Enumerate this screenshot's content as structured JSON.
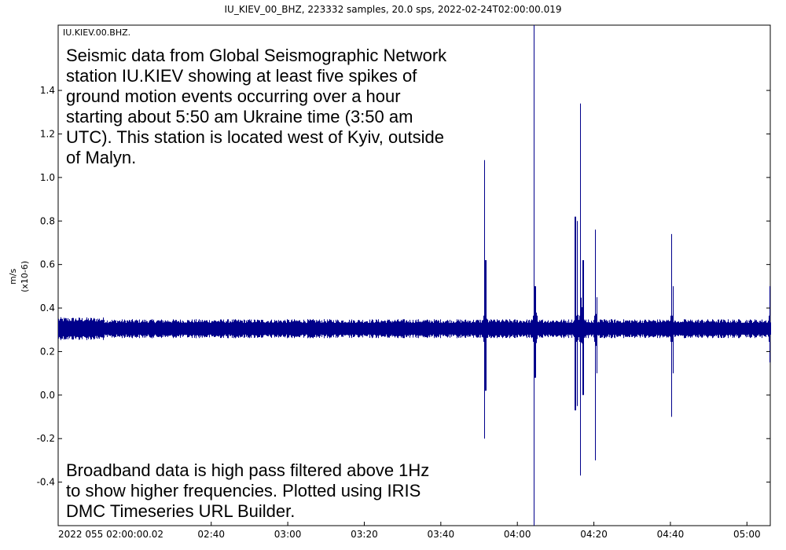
{
  "chart_data": {
    "type": "line",
    "title": "IU_KIEV_00_BHZ, 223332 samples, 20.0 sps, 2022-02-24T02:00:00.019",
    "station_label": "IU.KIEV.00.BHZ.",
    "ylabel": "m/s",
    "ylabel_unit": "(x10-6)",
    "ylim": [
      -0.6,
      1.7
    ],
    "xlim_minutes": [
      0,
      186.1
    ],
    "y_ticks": [
      {
        "value": -0.4,
        "label": "-0.4"
      },
      {
        "value": -0.2,
        "label": "-0.2"
      },
      {
        "value": 0.0,
        "label": "0.0"
      },
      {
        "value": 0.2,
        "label": "0.2"
      },
      {
        "value": 0.4,
        "label": "0.4"
      },
      {
        "value": 0.6,
        "label": "0.6"
      },
      {
        "value": 0.8,
        "label": "0.8"
      },
      {
        "value": 1.0,
        "label": "1.0"
      },
      {
        "value": 1.2,
        "label": "1.2"
      },
      {
        "value": 1.4,
        "label": "1.4"
      }
    ],
    "x_ticks": [
      {
        "minute": 0,
        "label": "2022 055 02:00:00.02"
      },
      {
        "minute": 40,
        "label": "02:40"
      },
      {
        "minute": 60,
        "label": "03:00"
      },
      {
        "minute": 80,
        "label": "03:20"
      },
      {
        "minute": 100,
        "label": "03:40"
      },
      {
        "minute": 120,
        "label": "04:00"
      },
      {
        "minute": 140,
        "label": "04:20"
      },
      {
        "minute": 160,
        "label": "04:40"
      },
      {
        "minute": 180,
        "label": "05:00"
      }
    ],
    "baseline": 0.305,
    "noise_amplitude": 0.035,
    "series_color": "#00008B",
    "spikes": [
      {
        "minute": 111.3,
        "max": 1.08,
        "min": -0.2
      },
      {
        "minute": 111.6,
        "max": 0.62,
        "min": 0.02
      },
      {
        "minute": 124.3,
        "max": 1.7,
        "min": -0.6
      },
      {
        "minute": 124.6,
        "max": 0.5,
        "min": 0.08
      },
      {
        "minute": 135.1,
        "max": 0.82,
        "min": -0.07
      },
      {
        "minute": 135.6,
        "max": 0.8,
        "min": -0.05
      },
      {
        "minute": 136.4,
        "max": 1.34,
        "min": -0.37
      },
      {
        "minute": 137.1,
        "max": 0.62,
        "min": 0.0
      },
      {
        "minute": 140.3,
        "max": 0.76,
        "min": -0.3
      },
      {
        "minute": 140.7,
        "max": 0.45,
        "min": 0.1
      },
      {
        "minute": 160.2,
        "max": 0.74,
        "min": -0.1
      },
      {
        "minute": 160.6,
        "max": 0.5,
        "min": 0.1
      },
      {
        "minute": 185.9,
        "max": 0.5,
        "min": 0.15
      }
    ]
  },
  "annotations": {
    "top": "Seismic data from Global Seismographic Network station IU.KIEV showing at least five spikes of ground motion events occurring over a hour starting about 5:50 am Ukraine time (3:50 am UTC). This station is located west of Kyiv, outside of Malyn.",
    "bottom": "Broadband data is high pass filtered above 1Hz to show higher frequencies. Plotted using IRIS DMC Timeseries URL Builder."
  }
}
